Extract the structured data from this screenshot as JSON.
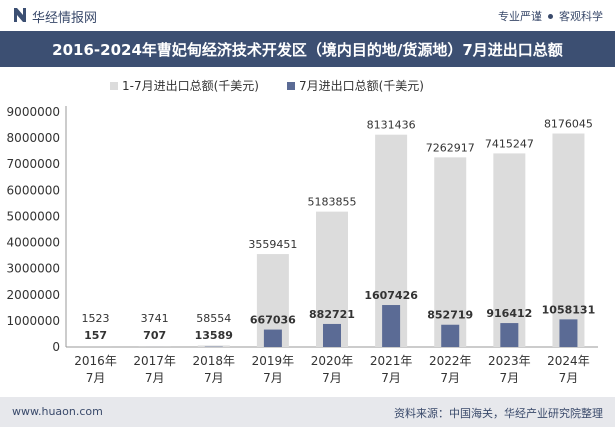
{
  "header": {
    "logo_text": "华经情报网",
    "tagline_left": "专业严谨",
    "tagline_right": "客观科学"
  },
  "title": "2016-2024年曹妃甸经济技术开发区（境内目的地/货源地）7月进出口总额",
  "footer": {
    "website": "www.huaon.com",
    "source": "资料来源：中国海关，华经产业研究院整理"
  },
  "colors": {
    "total_bar": "#dcdcdc",
    "july_bar": "#5b6b95",
    "title_bg": "#3c4f72",
    "footer_bg": "#e7e8ec"
  },
  "chart_data": {
    "type": "bar",
    "categories": [
      "2016年\n7月",
      "2017年\n7月",
      "2018年\n7月",
      "2019年\n7月",
      "2020年\n7月",
      "2021年\n7月",
      "2022年\n7月",
      "2023年\n7月",
      "2024年\n7月"
    ],
    "series": [
      {
        "name": "1-7月进出口总额(千美元)",
        "values": [
          1523,
          3741,
          58554,
          3559451,
          5183855,
          8131436,
          7262917,
          7415247,
          8176045
        ]
      },
      {
        "name": "7月进出口总额(千美元)",
        "values": [
          157,
          707,
          13589,
          667036,
          882721,
          1607426,
          852719,
          916412,
          1058131
        ]
      }
    ],
    "ylim": [
      0,
      9000000
    ],
    "yticks": [
      0,
      1000000,
      2000000,
      3000000,
      4000000,
      5000000,
      6000000,
      7000000,
      8000000,
      9000000
    ],
    "grid": false,
    "legend_position": "top"
  }
}
